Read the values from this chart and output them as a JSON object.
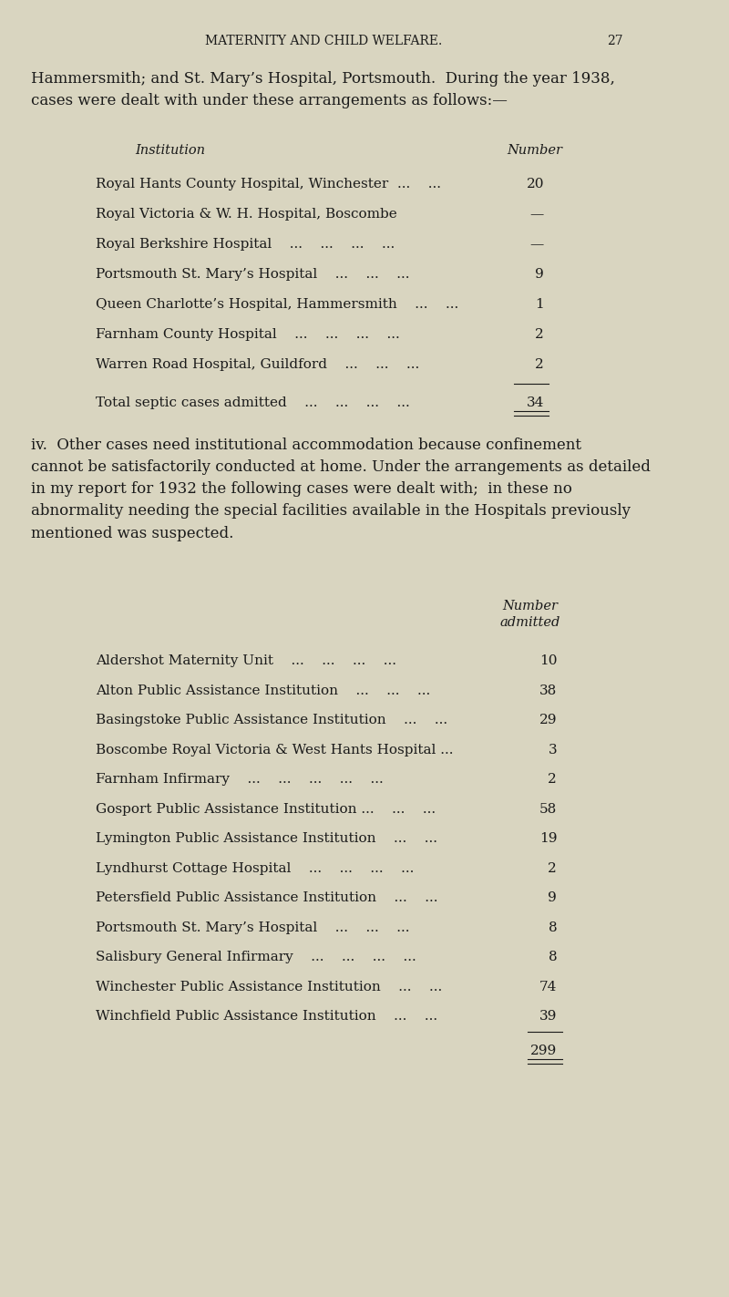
{
  "bg_color": "#d9d5c0",
  "text_color": "#1a1a1a",
  "page_header": "MATERNITY AND CHILD WELFARE.",
  "page_number": "27",
  "header_fontsize": 10,
  "intro_text": "Hammersmith; and St. Mary’s Hospital, Portsmouth.  During the year 1938,\ncases were dealt with under these arrangements as follows:—",
  "intro_fontsize": 12,
  "table1_col1_header": "Institution",
  "table1_col2_header": "Number",
  "table1_rows": [
    [
      "Royal Hants County Hospital, Winchester  ...    ...  ",
      "20"
    ],
    [
      "Royal Victoria & W. H. Hospital, Boscombe",
      "—"
    ],
    [
      "Royal Berkshire Hospital    ...    ...    ...    ...  ",
      "—"
    ],
    [
      "Portsmouth St. Mary’s Hospital    ...    ...    ...  ",
      "9"
    ],
    [
      "Queen Charlotte’s Hospital, Hammersmith    ...    ...  ",
      "1"
    ],
    [
      "Farnham County Hospital    ...    ...    ...    ...  ",
      "2"
    ],
    [
      "Warren Road Hospital, Guildford    ...    ...    ...  ",
      "2"
    ]
  ],
  "table1_total_label": "Total septic cases admitted    ...    ...    ...    ...  ",
  "table1_total_value": "34",
  "para2_text": "iv.  Other cases need institutional accommodation because confinement\ncannot be satisfactorily conducted at home. Under the arrangements as detailed\nin my report for 1932 the following cases were dealt with;  in these no\nabnormality needing the special facilities available in the Hospitals previously\nmentioned was suspected.",
  "para2_fontsize": 12,
  "table2_col2_header": "Number\nadmitted",
  "table2_rows": [
    [
      "Aldershot Maternity Unit    ...    ...    ...    ...  ",
      "10"
    ],
    [
      "Alton Public Assistance Institution    ...    ...    ...  ",
      "38"
    ],
    [
      "Basingstoke Public Assistance Institution    ...    ...  ",
      "29"
    ],
    [
      "Boscombe Royal Victoria & West Hants Hospital ...  ",
      "3"
    ],
    [
      "Farnham Infirmary    ...    ...    ...    ...    ...  ",
      "2"
    ],
    [
      "Gosport Public Assistance Institution ...    ...    ...  ",
      "58"
    ],
    [
      "Lymington Public Assistance Institution    ...    ...  ",
      "19"
    ],
    [
      "Lyndhurst Cottage Hospital    ...    ...    ...    ...  ",
      "2"
    ],
    [
      "Petersfield Public Assistance Institution    ...    ...  ",
      "9"
    ],
    [
      "Portsmouth St. Mary’s Hospital    ...    ...    ...  ",
      "8"
    ],
    [
      "Salisbury General Infirmary    ...    ...    ...    ...  ",
      "8"
    ],
    [
      "Winchester Public Assistance Institution    ...    ...  ",
      "74"
    ],
    [
      "Winchfield Public Assistance Institution    ...    ...  ",
      "39"
    ]
  ],
  "table2_total_value": "299",
  "row_fontsize": 11,
  "header_col_fontsize": 10.5
}
